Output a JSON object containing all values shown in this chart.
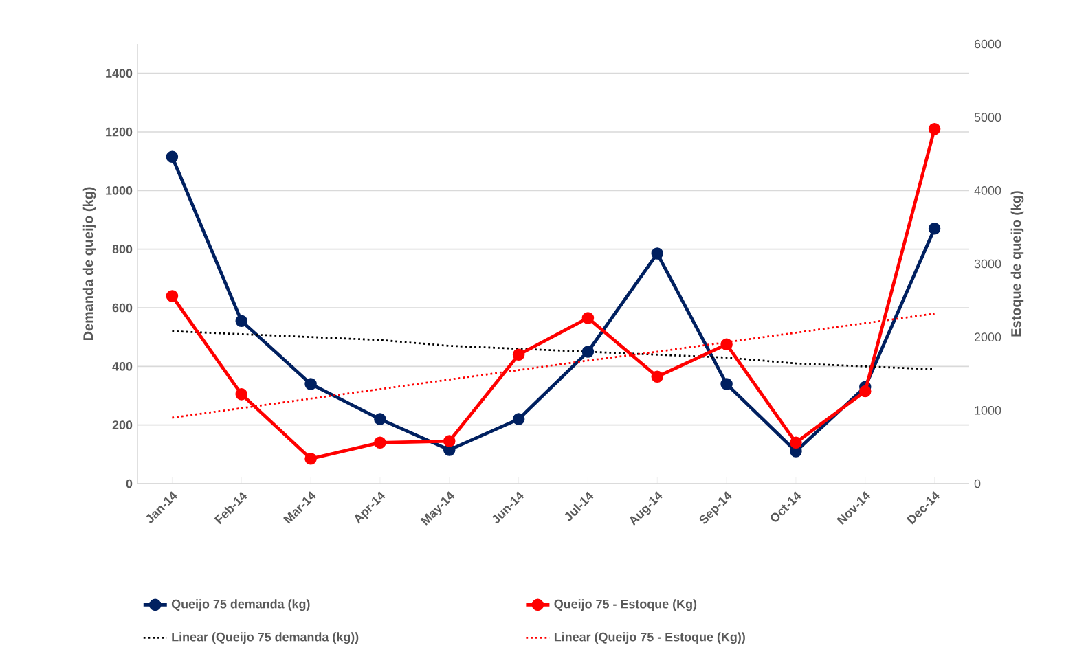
{
  "chart_data": {
    "type": "line",
    "categories": [
      "Jan-14",
      "Feb-14",
      "Mar-14",
      "Apr-14",
      "May-14",
      "Jun-14",
      "Jul-14",
      "Aug-14",
      "Sep-14",
      "Oct-14",
      "Nov-14",
      "Dec-14"
    ],
    "ylabel": "Demanda de queijo (kg)",
    "y2label": "Estoque de queijo (kg)",
    "ylim": [
      0,
      1500
    ],
    "yticks": [
      0,
      200,
      400,
      600,
      800,
      1000,
      1200,
      1400
    ],
    "y2lim": [
      0,
      6000
    ],
    "y2ticks": [
      0,
      1000,
      2000,
      3000,
      4000,
      5000,
      6000
    ],
    "grid": "y",
    "legend": "bottom",
    "series": [
      {
        "name": "Queijo 75 demanda (kg)",
        "color": "#002060",
        "marker": "circle",
        "line_style": "solid",
        "values": [
          1115,
          555,
          340,
          220,
          115,
          220,
          450,
          785,
          340,
          110,
          330,
          870
        ]
      },
      {
        "name": "Queijo 75 - Estoque (Kg)",
        "color": "#ff0000",
        "marker": "circle",
        "line_style": "solid",
        "axis": "y2",
        "values": [
          2560,
          1220,
          340,
          560,
          580,
          1760,
          2260,
          1460,
          1900,
          560,
          1260,
          4840
        ]
      },
      {
        "name": "Linear (Queijo 75 demanda (kg))",
        "color": "#000000",
        "marker": "none",
        "line_style": "dotted",
        "values": [
          520,
          510,
          500,
          490,
          470,
          460,
          450,
          440,
          430,
          410,
          400,
          390
        ]
      },
      {
        "name": "Linear (Queijo 75 - Estoque (Kg))",
        "color": "#ff0000",
        "marker": "none",
        "line_style": "dotted",
        "axis": "y2",
        "values": [
          900,
          1030,
          1160,
          1290,
          1420,
          1550,
          1680,
          1800,
          1930,
          2060,
          2190,
          2320
        ]
      }
    ]
  }
}
